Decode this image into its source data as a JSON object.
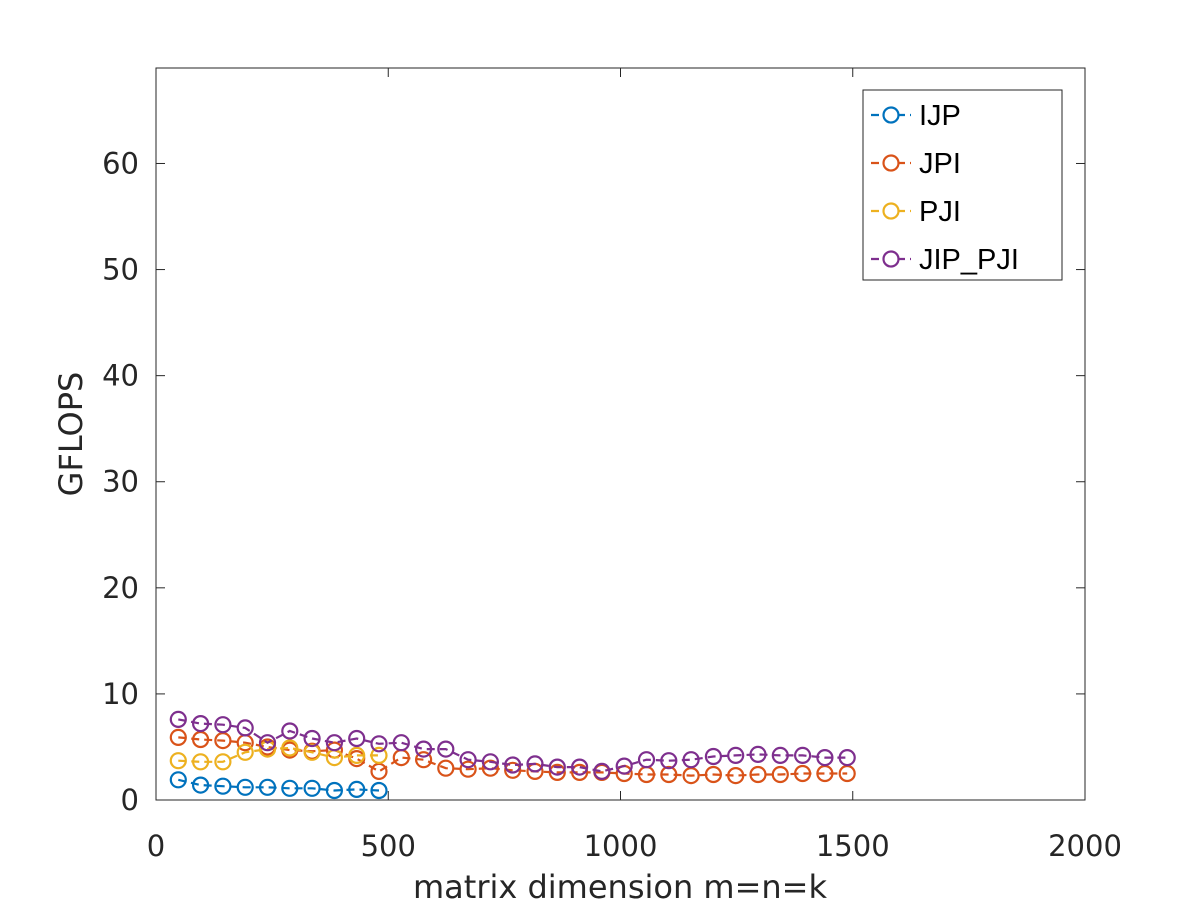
{
  "chart_data": {
    "type": "line",
    "title": "",
    "xlabel": "matrix dimension m=n=k",
    "ylabel": "GFLOPS",
    "xlim": [
      0,
      2000
    ],
    "ylim": [
      0,
      69
    ],
    "xticks": [
      0,
      500,
      1000,
      1500,
      2000
    ],
    "yticks": [
      0,
      10,
      20,
      30,
      40,
      50,
      60
    ],
    "grid": false,
    "legend_position": "top-right",
    "series": [
      {
        "name": "IJP",
        "color": "#0072BD",
        "x": [
          48,
          96,
          144,
          192,
          240,
          288,
          336,
          384,
          432,
          480
        ],
        "y": [
          1.9,
          1.4,
          1.3,
          1.2,
          1.2,
          1.1,
          1.1,
          0.9,
          1.0,
          0.9
        ]
      },
      {
        "name": "JPI",
        "color": "#D95319",
        "x": [
          48,
          96,
          144,
          192,
          240,
          288,
          336,
          384,
          432,
          480,
          528,
          576,
          624,
          672,
          720,
          768,
          816,
          864,
          912,
          960,
          1008,
          1056,
          1104,
          1152,
          1200,
          1248,
          1296,
          1344,
          1392,
          1440,
          1488
        ],
        "y": [
          5.9,
          5.7,
          5.6,
          5.4,
          5.0,
          4.7,
          4.6,
          4.7,
          3.9,
          2.7,
          4.0,
          3.8,
          3.0,
          2.9,
          3.0,
          2.8,
          2.7,
          2.6,
          2.6,
          2.6,
          2.5,
          2.4,
          2.4,
          2.3,
          2.4,
          2.3,
          2.4,
          2.4,
          2.5,
          2.5,
          2.5
        ]
      },
      {
        "name": "PJI",
        "color": "#EDB120",
        "x": [
          48,
          96,
          144,
          192,
          240,
          288,
          336,
          384,
          432,
          480
        ],
        "y": [
          3.7,
          3.6,
          3.6,
          4.5,
          4.8,
          4.9,
          4.5,
          4.0,
          4.2,
          4.2
        ]
      },
      {
        "name": "JIP_PJI",
        "color": "#7E2F8E",
        "x": [
          48,
          96,
          144,
          192,
          240,
          288,
          336,
          384,
          432,
          480,
          528,
          576,
          624,
          672,
          720,
          768,
          816,
          864,
          912,
          960,
          1008,
          1056,
          1104,
          1152,
          1200,
          1248,
          1296,
          1344,
          1392,
          1440,
          1488
        ],
        "y": [
          7.6,
          7.2,
          7.1,
          6.8,
          5.4,
          6.5,
          5.8,
          5.4,
          5.8,
          5.3,
          5.4,
          4.8,
          4.8,
          3.8,
          3.6,
          3.3,
          3.4,
          3.1,
          3.1,
          2.7,
          3.2,
          3.8,
          3.7,
          3.8,
          4.1,
          4.2,
          4.3,
          4.2,
          4.2,
          4.0,
          4.0
        ]
      }
    ]
  }
}
